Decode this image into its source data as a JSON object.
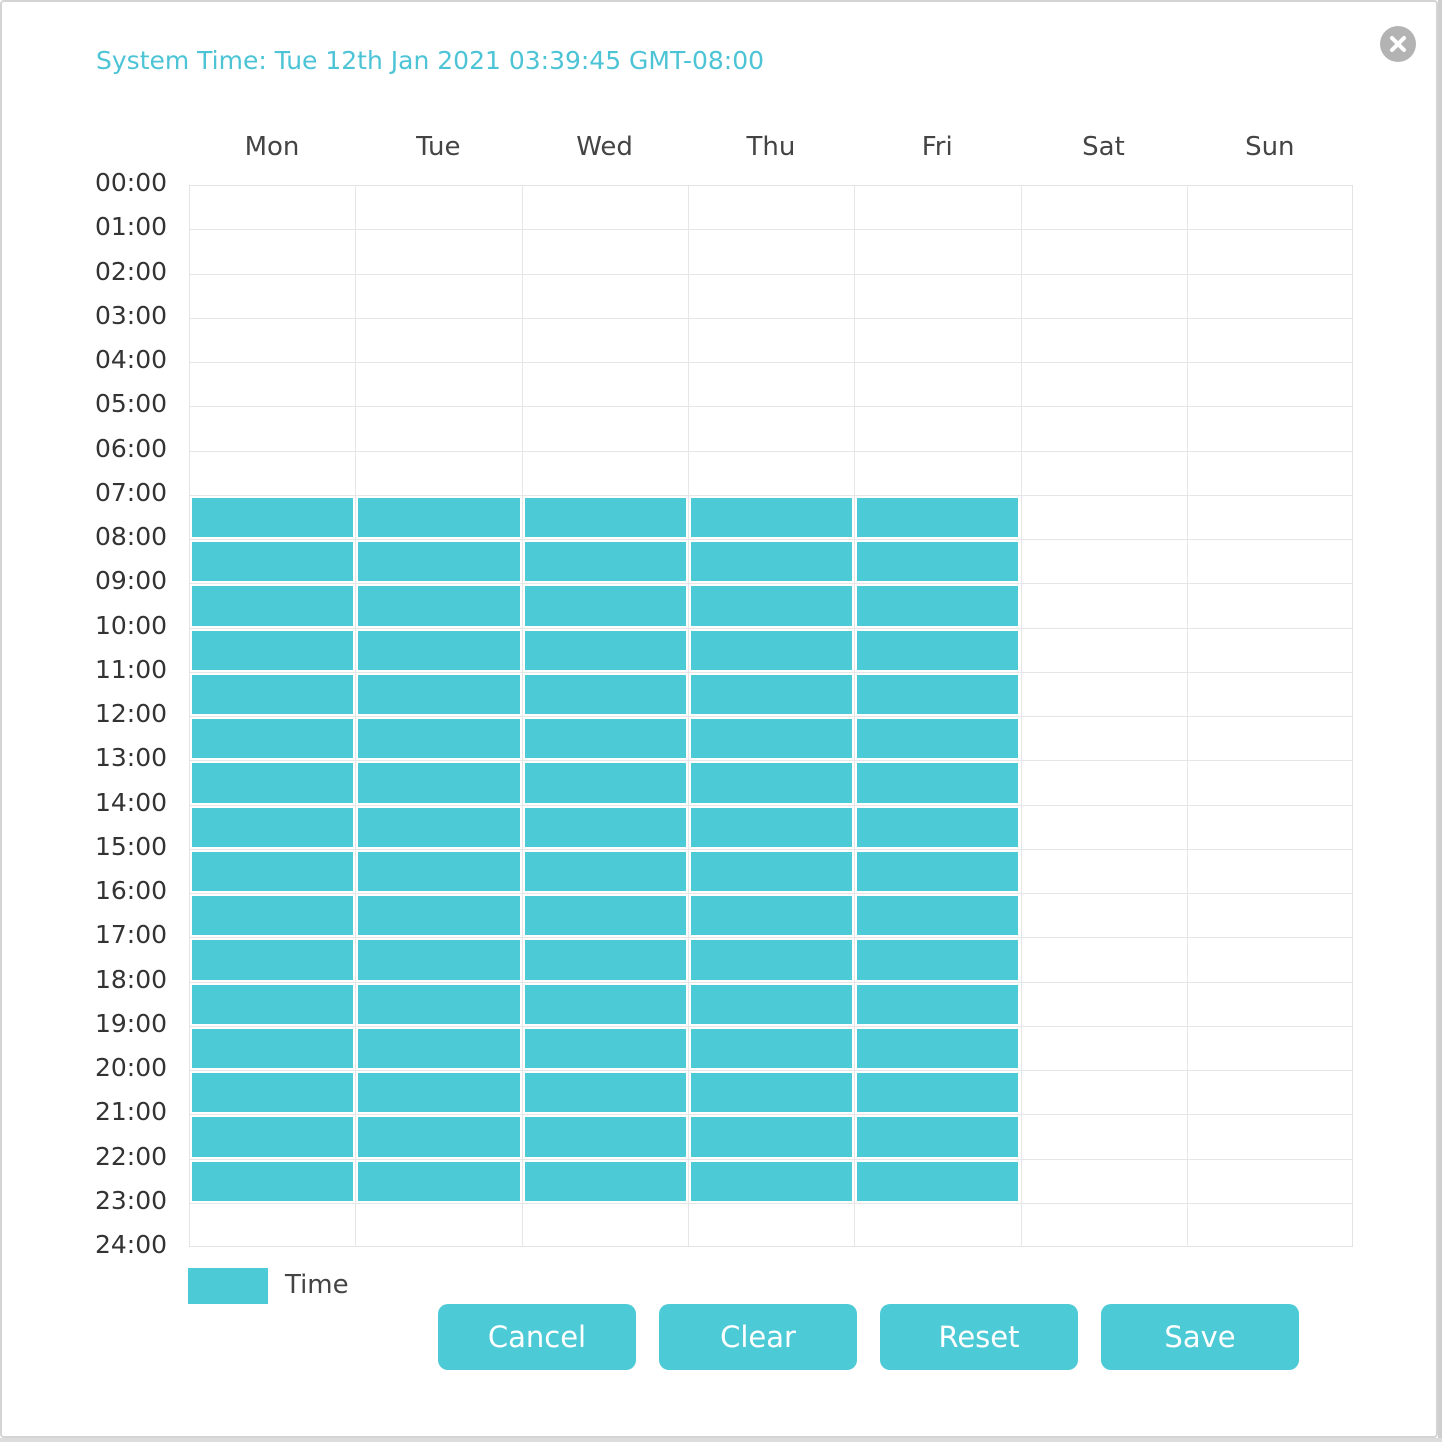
{
  "system_time": "System Time: Tue 12th Jan 2021 03:39:45 GMT-08:00",
  "days": [
    "Mon",
    "Tue",
    "Wed",
    "Thu",
    "Fri",
    "Sat",
    "Sun"
  ],
  "hours": [
    "00:00",
    "01:00",
    "02:00",
    "03:00",
    "04:00",
    "05:00",
    "06:00",
    "07:00",
    "08:00",
    "09:00",
    "10:00",
    "11:00",
    "12:00",
    "13:00",
    "14:00",
    "15:00",
    "16:00",
    "17:00",
    "18:00",
    "19:00",
    "20:00",
    "21:00",
    "22:00",
    "23:00",
    "24:00"
  ],
  "schedule": {
    "Mon": [
      7,
      8,
      9,
      10,
      11,
      12,
      13,
      14,
      15,
      16,
      17,
      18,
      19,
      20,
      21,
      22
    ],
    "Tue": [
      7,
      8,
      9,
      10,
      11,
      12,
      13,
      14,
      15,
      16,
      17,
      18,
      19,
      20,
      21,
      22
    ],
    "Wed": [
      7,
      8,
      9,
      10,
      11,
      12,
      13,
      14,
      15,
      16,
      17,
      18,
      19,
      20,
      21,
      22
    ],
    "Thu": [
      7,
      8,
      9,
      10,
      11,
      12,
      13,
      14,
      15,
      16,
      17,
      18,
      19,
      20,
      21,
      22
    ],
    "Fri": [
      7,
      8,
      9,
      10,
      11,
      12,
      13,
      14,
      15,
      16,
      17,
      18,
      19,
      20,
      21,
      22
    ],
    "Sat": [],
    "Sun": []
  },
  "legend": {
    "label": "Time",
    "color": "#4ccad6"
  },
  "buttons": {
    "cancel": "Cancel",
    "clear": "Clear",
    "reset": "Reset",
    "save": "Save"
  },
  "colors": {
    "accent": "#4ccad6",
    "title": "#4cc4d6",
    "close": "#b3b3b3"
  },
  "icons": {
    "close": "close-icon"
  }
}
